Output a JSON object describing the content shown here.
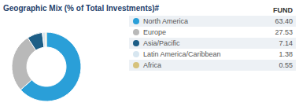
{
  "chart_data": {
    "type": "pie",
    "title": "Geographic Mix (% of Total Investments)#",
    "categories": [
      "North America",
      "Europe",
      "Asia/Pacific",
      "Latin America/Caribbean",
      "Africa"
    ],
    "series": [
      {
        "name": "FUND",
        "values": [
          63.4,
          27.53,
          7.14,
          1.38,
          0.55
        ],
        "value_labels": [
          "63.40",
          "27.53",
          "7.14",
          "1.38",
          "0.55"
        ]
      }
    ],
    "colors": [
      "#2a9fd8",
      "#b9b9b9",
      "#1d5e86",
      "#d7e6f0",
      "#d6c27c"
    ],
    "legend": "right"
  }
}
